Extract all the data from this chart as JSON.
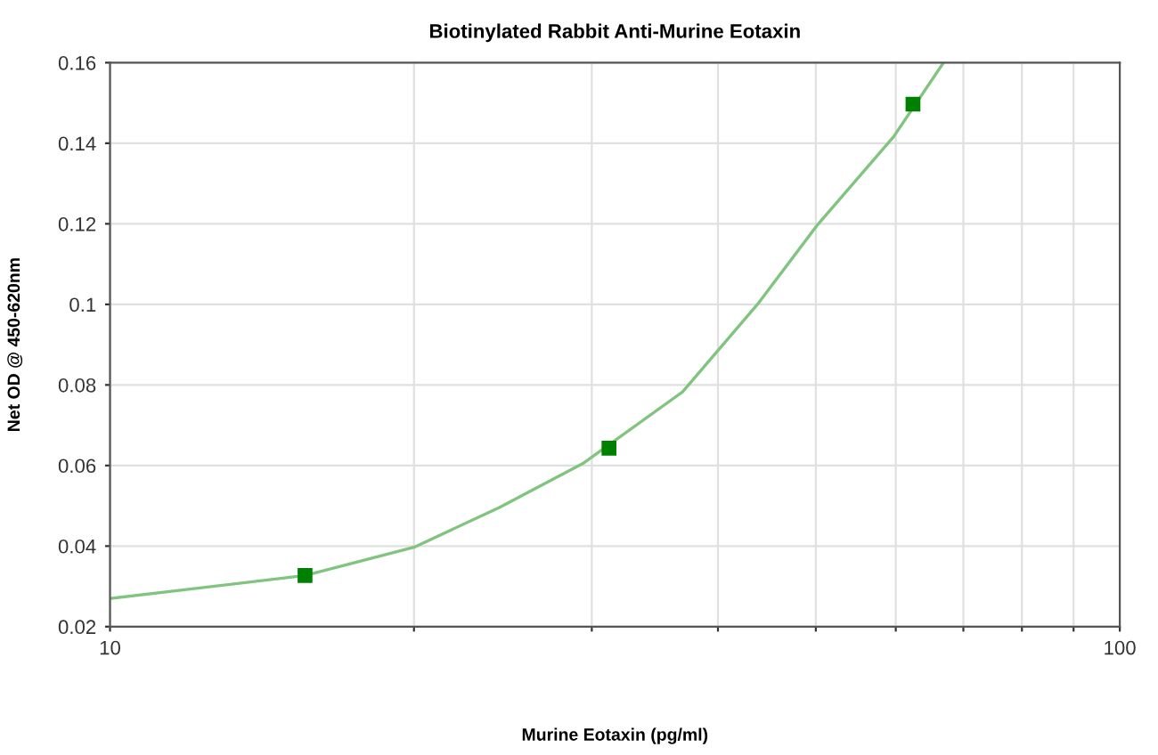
{
  "chart_data": {
    "type": "scatter",
    "title": "Biotinylated Rabbit Anti-Murine Eotaxin",
    "xlabel": "Murine Eotaxin (pg/ml)",
    "ylabel": "Net OD @ 450-620nm",
    "series": [
      {
        "color": "#008000",
        "marker": "square",
        "x": [
          15.6,
          31.2,
          62.4
        ],
        "values": [
          0.0327,
          0.0643,
          0.1497
        ]
      },
      {
        "type": "line",
        "color": "#80c480",
        "marker": "none",
        "x": [
          10,
          11.7,
          15.6,
          20,
          24.3,
          29.4,
          36.9,
          43.9,
          50.1,
          59.7,
          66.9
        ],
        "values": [
          0.027,
          0.029,
          0.0327,
          0.0397,
          0.0496,
          0.0605,
          0.0783,
          0.1004,
          0.1195,
          0.1416,
          0.16
        ]
      }
    ],
    "log": "x",
    "xlim": [
      10,
      100
    ],
    "xticks": [
      10,
      {
        "value": 20,
        "label": null
      },
      {
        "value": 30,
        "label": null
      },
      {
        "value": 40,
        "label": null
      },
      {
        "value": 50,
        "label": null
      },
      {
        "value": 60,
        "label": null
      },
      {
        "value": 70,
        "label": null
      },
      {
        "value": 80,
        "label": null
      },
      {
        "value": 90,
        "label": null
      },
      100
    ],
    "ylim": [
      0.02,
      0.16
    ],
    "yticks": [
      0.02,
      0.04,
      0.06,
      0.08,
      0.1,
      0.12,
      0.14,
      0.16
    ],
    "grid": true
  }
}
